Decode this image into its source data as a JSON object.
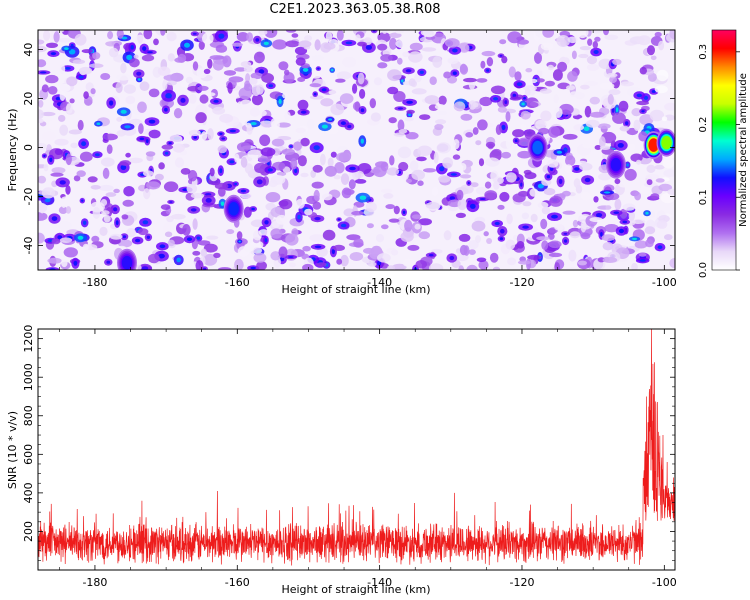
{
  "title": "C2E1.2023.363.05.38.R08",
  "colors": {
    "snr_line": "#ee1c1c",
    "axis": "#000000",
    "colormap": [
      "#ffffff",
      "#e8d8f8",
      "#b070f0",
      "#8a2be2",
      "#6a00ff",
      "#1010ff",
      "#00aaff",
      "#00ffd0",
      "#00ff00",
      "#c8ff00",
      "#ffff00",
      "#ff8800",
      "#ff0000",
      "#ff0060"
    ]
  },
  "chart_data": [
    {
      "type": "heatmap",
      "xlabel": "Height of straight line (km)",
      "ylabel": "Frequency (Hz)",
      "xlim": [
        -188,
        -98.5
      ],
      "ylim": [
        -50,
        48
      ],
      "xticks": [
        -180,
        -160,
        -140,
        -120,
        -100
      ],
      "xtick_labels": [
        "-180",
        "-160",
        "-140",
        "-120",
        "-100"
      ],
      "yticks": [
        -40,
        -20,
        0,
        20,
        40
      ],
      "ytick_labels": [
        "-40",
        "-20",
        "0",
        "20",
        "40"
      ],
      "colorbar": {
        "label": "Normalized spectral amplitude",
        "range": [
          0.0,
          0.33
        ],
        "ticks": [
          0.0,
          0.1,
          0.2,
          0.3
        ],
        "tick_labels": [
          "0.0",
          "0.1",
          "0.2",
          "0.3"
        ]
      },
      "background_level": 0.06,
      "features": [
        {
          "x": -101.5,
          "y": 1,
          "amplitude": 0.3
        },
        {
          "x": -99.7,
          "y": 2,
          "amplitude": 0.22
        },
        {
          "x": -117.8,
          "y": 0,
          "amplitude": 0.14
        },
        {
          "x": -106.8,
          "y": -7,
          "amplitude": 0.12
        },
        {
          "x": -160.5,
          "y": -25,
          "amplitude": 0.13
        },
        {
          "x": -175.5,
          "y": -47,
          "amplitude": 0.12
        }
      ]
    },
    {
      "type": "line",
      "xlabel": "Height of straight line (km)",
      "ylabel": "SNR (10 * v/v)",
      "xlim": [
        -188,
        -98.5
      ],
      "ylim": [
        0,
        1250
      ],
      "xticks": [
        -180,
        -160,
        -140,
        -120,
        -100
      ],
      "xtick_labels": [
        "-180",
        "-160",
        "-140",
        "-120",
        "-100"
      ],
      "yticks": [
        200,
        400,
        600,
        800,
        1000,
        1200
      ],
      "ytick_labels": [
        "200",
        "400",
        "600",
        "800",
        "1000",
        "1200"
      ],
      "baseline_mean": 140,
      "baseline_spread": 120,
      "notable_points": [
        {
          "x": -188,
          "y": 290
        },
        {
          "x": -162.8,
          "y": 410
        },
        {
          "x": -129.5,
          "y": 400
        },
        {
          "x": -102.5,
          "y": 900
        },
        {
          "x": -101.8,
          "y": 1260
        },
        {
          "x": -101.2,
          "y": 860
        },
        {
          "x": -100.2,
          "y": 700
        },
        {
          "x": -99.6,
          "y": 560
        },
        {
          "x": -98.7,
          "y": 480
        }
      ]
    }
  ]
}
